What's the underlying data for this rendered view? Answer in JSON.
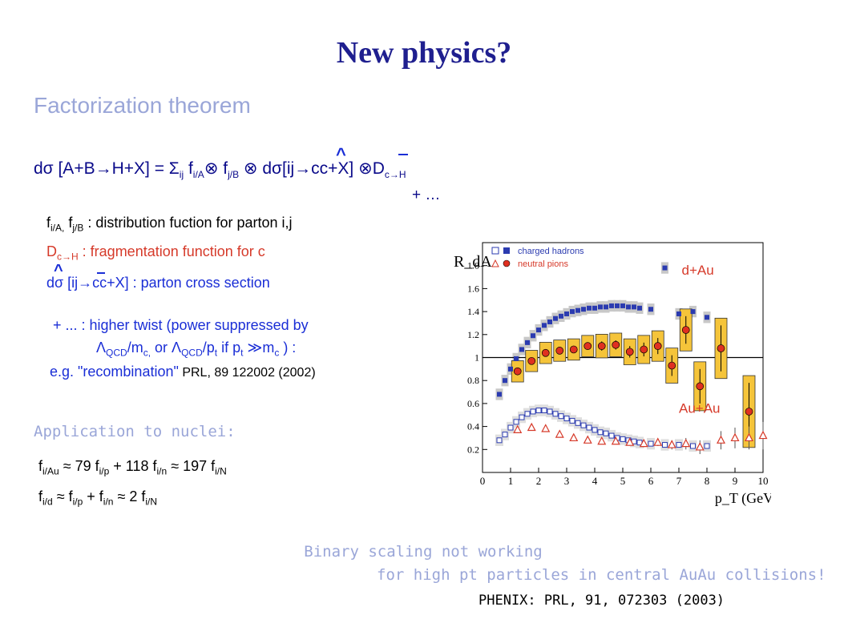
{
  "slide": {
    "title": "New physics?",
    "section_heading": "Factorization theorem",
    "equation": {
      "main": "dσ [A+B→H+X] = Σ",
      "sum_sub": "ij",
      "f1": " f",
      "f1_sub": "i/A",
      "otimes1": "⊗ f",
      "f2_sub": "j/B",
      "mid": " ⊗ dσ[ij→cc+X] ⊗D",
      "d_sub": "c→H",
      "trail": "+ …"
    },
    "defs": {
      "line1_a": "f",
      "line1_sub1": "i/A,",
      "line1_b": " f",
      "line1_sub2": "j/B",
      "line1_text": " : distribution fuction for parton i,j",
      "line2_a": "D",
      "line2_sub": "c→H",
      "line2_text": " : fragmentation function for c",
      "line3_text": "dσ [ij→cc+X] : parton cross section"
    },
    "twist": {
      "line1": "+ ... : higher twist (power suppressed by",
      "line2_a": "Λ",
      "line2_sub1": "QCD",
      "line2_b": "/m",
      "line2_sub2": "c,",
      "line2_c": " or Λ",
      "line2_sub3": "QCD",
      "line2_d": "/p",
      "line2_sub4": "t",
      "line2_e": " if p",
      "line2_sub5": "t",
      "line2_f": " ≫m",
      "line2_sub6": "c",
      "line2_g": " ) :",
      "line3_a": "e.g. \"recombination\"",
      "line3_b": " PRL, 89 122002 (2002)"
    },
    "application_heading": "Application to nuclei:",
    "nuclei": {
      "l1": [
        "f",
        "i/Au",
        " ≈ 79 f",
        "i/p",
        " + 118 f",
        "i/n",
        " ≈ 197 f",
        "i/N"
      ],
      "l2": [
        "f",
        "i/d",
        " ≈ f",
        "i/p",
        " + f",
        "i/n",
        " ≈ 2 f",
        "i/N"
      ]
    },
    "caption_line1": "Binary scaling not working",
    "caption_line2": "for high pt particles in central AuAu collisions!",
    "reference": "PHENIX: PRL, 91, 072303 (2003)"
  },
  "chart_data": {
    "type": "scatter",
    "ylabel": "R_dA",
    "xlabel": "p_T (GeV/c)",
    "xlim": [
      0,
      10
    ],
    "ylim": [
      0,
      2.0
    ],
    "x_ticks": [
      0,
      1,
      2,
      3,
      4,
      5,
      6,
      7,
      8,
      9,
      10
    ],
    "y_ticks": [
      0.2,
      0.4,
      0.6,
      0.8,
      1,
      1.2,
      1.4,
      1.6,
      1.8
    ],
    "reference_line": 1,
    "legend": [
      {
        "label": "charged hadrons",
        "marker": "square",
        "color": "#2b3bb0"
      },
      {
        "label": "neutral pions",
        "marker": "triangle",
        "color": "#d63a2a"
      }
    ],
    "panel_labels": {
      "dAu": "d+Au",
      "AuAu": "Au+Au"
    },
    "colors": {
      "charged": "#2b3bb0",
      "pion": "#d63a2a",
      "pion_fill": "#e03020",
      "band_yellow": "#f5c43a",
      "band_gray": "#c8c8c8"
    },
    "series": [
      {
        "name": "charged hadrons",
        "system": "d+Au",
        "x": [
          0.6,
          0.8,
          1.0,
          1.2,
          1.4,
          1.6,
          1.8,
          2.0,
          2.2,
          2.4,
          2.6,
          2.8,
          3.0,
          3.2,
          3.4,
          3.6,
          3.8,
          4.0,
          4.2,
          4.4,
          4.6,
          4.8,
          5.0,
          5.2,
          5.4,
          5.6,
          6.0,
          6.5,
          7.0,
          7.5,
          8.0
        ],
        "y": [
          0.68,
          0.8,
          0.9,
          0.99,
          1.07,
          1.13,
          1.19,
          1.24,
          1.28,
          1.31,
          1.34,
          1.36,
          1.38,
          1.4,
          1.41,
          1.42,
          1.43,
          1.43,
          1.44,
          1.44,
          1.45,
          1.45,
          1.45,
          1.44,
          1.44,
          1.43,
          1.42,
          1.78,
          1.38,
          1.4,
          1.35
        ],
        "band": 0.05
      },
      {
        "name": "neutral pions",
        "system": "d+Au",
        "x": [
          1.25,
          1.75,
          2.25,
          2.75,
          3.25,
          3.75,
          4.25,
          4.75,
          5.25,
          5.75,
          6.25,
          6.75,
          7.25,
          7.75,
          8.5,
          9.5
        ],
        "y": [
          0.88,
          0.97,
          1.04,
          1.06,
          1.07,
          1.1,
          1.1,
          1.11,
          1.05,
          1.07,
          1.1,
          0.93,
          1.24,
          0.75,
          1.08,
          0.53
        ],
        "err": [
          0.03,
          0.03,
          0.03,
          0.03,
          0.03,
          0.03,
          0.04,
          0.04,
          0.05,
          0.06,
          0.07,
          0.09,
          0.12,
          0.15,
          0.2,
          0.25
        ]
      },
      {
        "name": "charged hadrons",
        "system": "Au+Au",
        "x": [
          0.6,
          0.8,
          1.0,
          1.2,
          1.4,
          1.6,
          1.8,
          2.0,
          2.2,
          2.4,
          2.6,
          2.8,
          3.0,
          3.2,
          3.4,
          3.6,
          3.8,
          4.0,
          4.2,
          4.4,
          4.6,
          4.8,
          5.0,
          5.2,
          5.4,
          5.6,
          6.0,
          6.5,
          7.0,
          7.5,
          8.0
        ],
        "y": [
          0.28,
          0.33,
          0.39,
          0.44,
          0.48,
          0.51,
          0.53,
          0.54,
          0.54,
          0.53,
          0.51,
          0.49,
          0.47,
          0.45,
          0.43,
          0.41,
          0.39,
          0.37,
          0.35,
          0.34,
          0.32,
          0.3,
          0.29,
          0.28,
          0.27,
          0.26,
          0.25,
          0.24,
          0.24,
          0.23,
          0.23
        ]
      },
      {
        "name": "neutral pions",
        "system": "Au+Au",
        "x": [
          1.25,
          1.75,
          2.25,
          2.75,
          3.25,
          3.75,
          4.25,
          4.75,
          5.25,
          5.75,
          6.25,
          6.75,
          7.25,
          7.75,
          8.5,
          9.0,
          9.5,
          10.0
        ],
        "y": [
          0.37,
          0.39,
          0.38,
          0.33,
          0.3,
          0.28,
          0.27,
          0.27,
          0.26,
          0.25,
          0.26,
          0.24,
          0.25,
          0.22,
          0.28,
          0.3,
          0.3,
          0.32
        ],
        "err": [
          0.02,
          0.02,
          0.02,
          0.02,
          0.02,
          0.02,
          0.02,
          0.02,
          0.02,
          0.03,
          0.03,
          0.04,
          0.05,
          0.06,
          0.08,
          0.09,
          0.1,
          0.12
        ]
      }
    ]
  }
}
